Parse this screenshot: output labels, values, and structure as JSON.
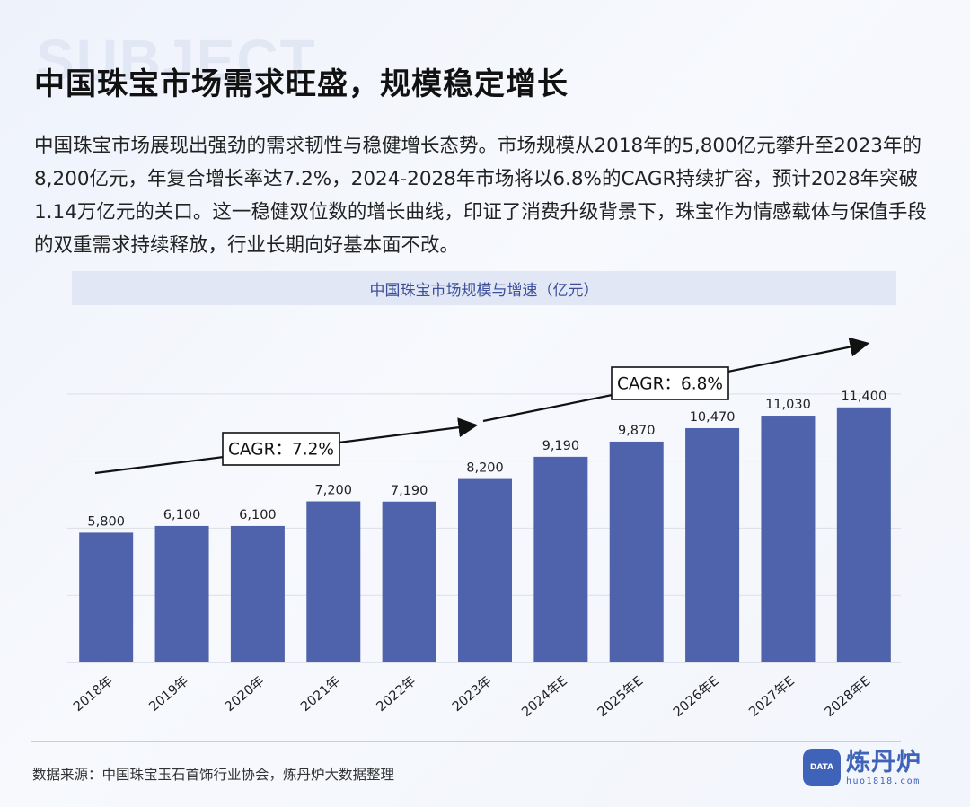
{
  "watermark": "SUBJECT",
  "title": "中国珠宝市场需求旺盛，规模稳定增长",
  "description": "中国珠宝市场展现出强劲的需求韧性与稳健增长态势。市场规模从2018年的5,800亿元攀升至2023年的8,200亿元，年复合增长率达7.2%，2024-2028年市场将以6.8%的CAGR持续扩容，预计2028年突破1.14万亿元的关口。这一稳健双位数的增长曲线，印证了消费升级背景下，珠宝作为情感载体与保值手段的双重需求持续释放，行业长期向好基本面不改。",
  "chart_data": {
    "type": "bar",
    "title": "中国珠宝市场规模与增速（亿元）",
    "categories": [
      "2018年",
      "2019年",
      "2020年",
      "2021年",
      "2022年",
      "2023年",
      "2024年E",
      "2025年E",
      "2026年E",
      "2027年E",
      "2028年E"
    ],
    "values": [
      5800,
      6100,
      6100,
      7200,
      7190,
      8200,
      9190,
      9870,
      10470,
      11030,
      11400
    ],
    "value_labels": [
      "5,800",
      "6,100",
      "6,100",
      "7,200",
      "7,190",
      "8,200",
      "9,190",
      "9,870",
      "10,470",
      "11,030",
      "11,400"
    ],
    "ylim": [
      0,
      12000
    ],
    "grid": true,
    "bar_color": "#4f63ac",
    "annotations": [
      {
        "text": "CAGR：7.2%"
      },
      {
        "text": "CAGR：6.8%"
      }
    ]
  },
  "source": "数据来源：中国珠宝玉石首饰行业协会，炼丹炉大数据整理",
  "logo": {
    "badge": "DATA",
    "name": "炼丹炉",
    "url": "huo1818.com"
  }
}
